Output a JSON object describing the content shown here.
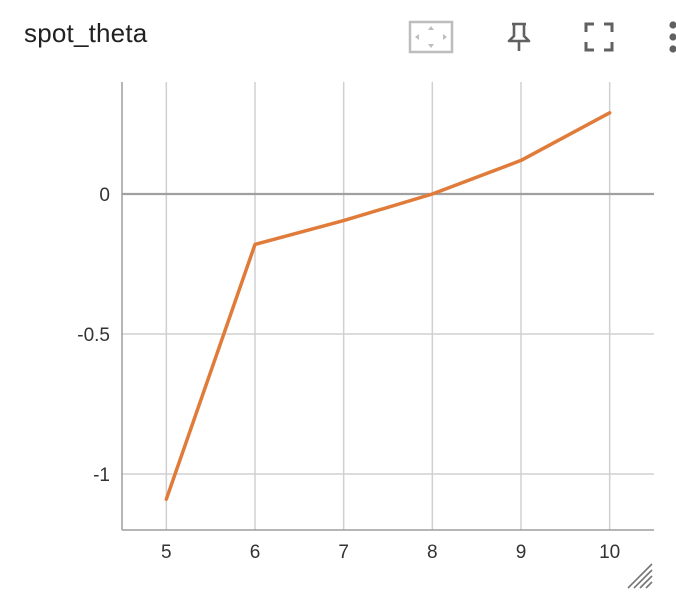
{
  "card": {
    "title": "spot_theta"
  },
  "toolbar": {
    "buttons": [
      {
        "name": "fit-domain-button",
        "icon": "fit-domain-icon"
      },
      {
        "name": "pin-button",
        "icon": "pin-icon"
      },
      {
        "name": "fullscreen-button",
        "icon": "fullscreen-icon"
      },
      {
        "name": "more-options-button",
        "icon": "more-vert-icon"
      }
    ]
  },
  "colors": {
    "line": "#e07b39",
    "grid": "#d0d0d0",
    "zero_line": "#a0a0a0",
    "axis": "#9e9e9e",
    "text": "#333333"
  },
  "chart_data": {
    "type": "line",
    "title": "spot_theta",
    "xlabel": "",
    "ylabel": "",
    "xlim": [
      4.5,
      10.5
    ],
    "ylim": [
      -1.2,
      0.4
    ],
    "x_ticks": [
      5,
      6,
      7,
      8,
      9,
      10
    ],
    "x_tick_labels": [
      "5",
      "6",
      "7",
      "8",
      "9",
      "10"
    ],
    "y_ticks": [
      0,
      -0.5,
      -1
    ],
    "y_tick_labels": [
      "0",
      "-0.5",
      "-1"
    ],
    "grid": true,
    "series": [
      {
        "x": [
          5,
          6,
          7,
          8,
          9,
          10
        ],
        "y": [
          -1.09,
          -0.18,
          -0.095,
          0.0,
          0.12,
          0.29
        ]
      }
    ]
  }
}
